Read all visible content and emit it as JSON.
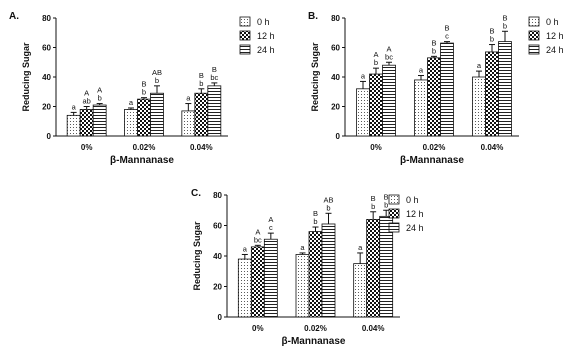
{
  "chart_data": [
    {
      "type": "bar",
      "panel": "A.",
      "title": "",
      "xlabel": "β-Mannanase",
      "ylabel": "Reducing Sugar",
      "categories": [
        "0%",
        "0.02%",
        "0.04%"
      ],
      "ylim": [
        0,
        80
      ],
      "yticks": [
        0,
        20,
        40,
        60,
        80
      ],
      "grid": false,
      "legend_position": "top-right",
      "series": [
        {
          "name": "0 h",
          "pattern": "dots",
          "values": [
            14,
            18,
            17
          ],
          "errors": [
            2,
            1,
            5
          ],
          "letters_upper": [
            "",
            "",
            ""
          ],
          "letters_lower": [
            "a",
            "a",
            "a"
          ]
        },
        {
          "name": "12 h",
          "pattern": "checker",
          "values": [
            18,
            25,
            29
          ],
          "errors": [
            2,
            1,
            3
          ],
          "letters_upper": [
            "",
            "B",
            "B"
          ],
          "letters_lower": [
            "ab",
            "b",
            "b"
          ]
        },
        {
          "name": "24 h",
          "pattern": "horizontal",
          "values": [
            21,
            29,
            34
          ],
          "errors": [
            1,
            5,
            2
          ],
          "letters_upper": [
            "A",
            "AB",
            "B"
          ],
          "letters_lower": [
            "b",
            "b",
            "bc"
          ]
        }
      ],
      "extra_letters": [
        {
          "category": 0,
          "series": 1,
          "text": "A"
        }
      ]
    },
    {
      "type": "bar",
      "panel": "B.",
      "title": "",
      "xlabel": "β-Mannanase",
      "ylabel": "Reducing Sugar",
      "categories": [
        "0%",
        "0.02%",
        "0.04%"
      ],
      "ylim": [
        0,
        80
      ],
      "yticks": [
        0,
        20,
        40,
        60,
        80
      ],
      "grid": false,
      "legend_position": "top-right",
      "series": [
        {
          "name": "0 h",
          "pattern": "dots",
          "values": [
            32,
            38,
            40
          ],
          "errors": [
            5,
            3,
            4
          ],
          "letters_upper": [
            "",
            "",
            ""
          ],
          "letters_lower": [
            "a",
            "a",
            "a"
          ]
        },
        {
          "name": "12 h",
          "pattern": "checker",
          "values": [
            42,
            53,
            57
          ],
          "errors": [
            4,
            1,
            5
          ],
          "letters_upper": [
            "A",
            "B",
            "B"
          ],
          "letters_lower": [
            "b",
            "b",
            "b"
          ]
        },
        {
          "name": "24 h",
          "pattern": "horizontal",
          "values": [
            48,
            63,
            64
          ],
          "errors": [
            2,
            1,
            7
          ],
          "letters_upper": [
            "A",
            "B",
            "B"
          ],
          "letters_lower": [
            "bc",
            "c",
            "b"
          ]
        }
      ]
    },
    {
      "type": "bar",
      "panel": "C.",
      "title": "",
      "xlabel": "β-Mannanase",
      "ylabel": "Reducing Sugar",
      "categories": [
        "0%",
        "0.02%",
        "0.04%"
      ],
      "ylim": [
        0,
        80
      ],
      "yticks": [
        0,
        20,
        40,
        60,
        80
      ],
      "grid": false,
      "legend_position": "top-right",
      "series": [
        {
          "name": "0 h",
          "pattern": "dots",
          "values": [
            38,
            41,
            35
          ],
          "errors": [
            3,
            1,
            7
          ],
          "letters_upper": [
            "",
            "",
            ""
          ],
          "letters_lower": [
            "a",
            "a",
            "a"
          ]
        },
        {
          "name": "12 h",
          "pattern": "checker",
          "values": [
            46,
            56,
            64
          ],
          "errors": [
            1,
            3,
            5
          ],
          "letters_upper": [
            "A",
            "B",
            "B"
          ],
          "letters_lower": [
            "bc",
            "b",
            "b"
          ]
        },
        {
          "name": "24 h",
          "pattern": "horizontal",
          "values": [
            51,
            61,
            66
          ],
          "errors": [
            4,
            7,
            4
          ],
          "letters_upper": [
            "A",
            "AB",
            "B"
          ],
          "letters_lower": [
            "c",
            "b",
            "b"
          ]
        }
      ]
    }
  ]
}
